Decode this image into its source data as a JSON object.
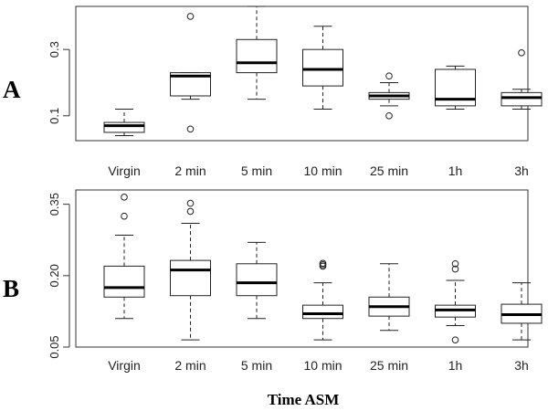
{
  "chart_data": [
    {
      "type": "boxplot",
      "panel_label": "A",
      "categories": [
        "Virgin",
        "2 min",
        "5 min",
        "10 min",
        "25 min",
        "1h",
        "3h"
      ],
      "ylim": [
        0.025,
        0.43
      ],
      "yticks": [
        0.1,
        0.3
      ],
      "ytick_labels": [
        "0.1",
        "0.3"
      ],
      "boxes": [
        {
          "min": 0.04,
          "q1": 0.05,
          "median": 0.07,
          "q3": 0.08,
          "max": 0.12,
          "outliers": []
        },
        {
          "min": 0.15,
          "q1": 0.16,
          "median": 0.22,
          "q3": 0.23,
          "max": 0.23,
          "outliers": [
            0.4,
            0.06
          ]
        },
        {
          "min": 0.15,
          "q1": 0.23,
          "median": 0.26,
          "q3": 0.33,
          "max": 0.43,
          "outliers": []
        },
        {
          "min": 0.12,
          "q1": 0.19,
          "median": 0.24,
          "q3": 0.3,
          "max": 0.37,
          "outliers": []
        },
        {
          "min": 0.13,
          "q1": 0.15,
          "median": 0.16,
          "q3": 0.17,
          "max": 0.2,
          "outliers": [
            0.22,
            0.1
          ]
        },
        {
          "min": 0.12,
          "q1": 0.13,
          "median": 0.15,
          "q3": 0.24,
          "max": 0.25,
          "outliers": []
        },
        {
          "min": 0.12,
          "q1": 0.13,
          "median": 0.155,
          "q3": 0.17,
          "max": 0.18,
          "outliers": [
            0.29
          ]
        }
      ]
    },
    {
      "type": "boxplot",
      "panel_label": "B",
      "categories": [
        "Virgin",
        "2 min",
        "5 min",
        "10 min",
        "25 min",
        "1h",
        "3h"
      ],
      "ylim": [
        0.05,
        0.38
      ],
      "yticks": [
        0.05,
        0.2,
        0.35
      ],
      "ytick_labels": [
        "0.05",
        "0.20",
        "0.35"
      ],
      "boxes": [
        {
          "min": 0.11,
          "q1": 0.155,
          "median": 0.175,
          "q3": 0.22,
          "max": 0.285,
          "outliers": [
            0.365,
            0.325
          ]
        },
        {
          "min": 0.065,
          "q1": 0.158,
          "median": 0.212,
          "q3": 0.232,
          "max": 0.31,
          "outliers": [
            0.352,
            0.335
          ]
        },
        {
          "min": 0.11,
          "q1": 0.158,
          "median": 0.185,
          "q3": 0.225,
          "max": 0.27,
          "outliers": []
        },
        {
          "min": 0.065,
          "q1": 0.11,
          "median": 0.12,
          "q3": 0.138,
          "max": 0.185,
          "outliers": [
            0.22,
            0.223,
            0.226
          ]
        },
        {
          "min": 0.085,
          "q1": 0.115,
          "median": 0.135,
          "q3": 0.155,
          "max": 0.225,
          "outliers": []
        },
        {
          "min": 0.095,
          "q1": 0.113,
          "median": 0.128,
          "q3": 0.138,
          "max": 0.19,
          "outliers": [
            0.225,
            0.214,
            0.065
          ]
        },
        {
          "min": 0.065,
          "q1": 0.1,
          "median": 0.118,
          "q3": 0.14,
          "max": 0.185,
          "outliers": []
        }
      ]
    }
  ],
  "shared_xlabel": "Time ASM"
}
